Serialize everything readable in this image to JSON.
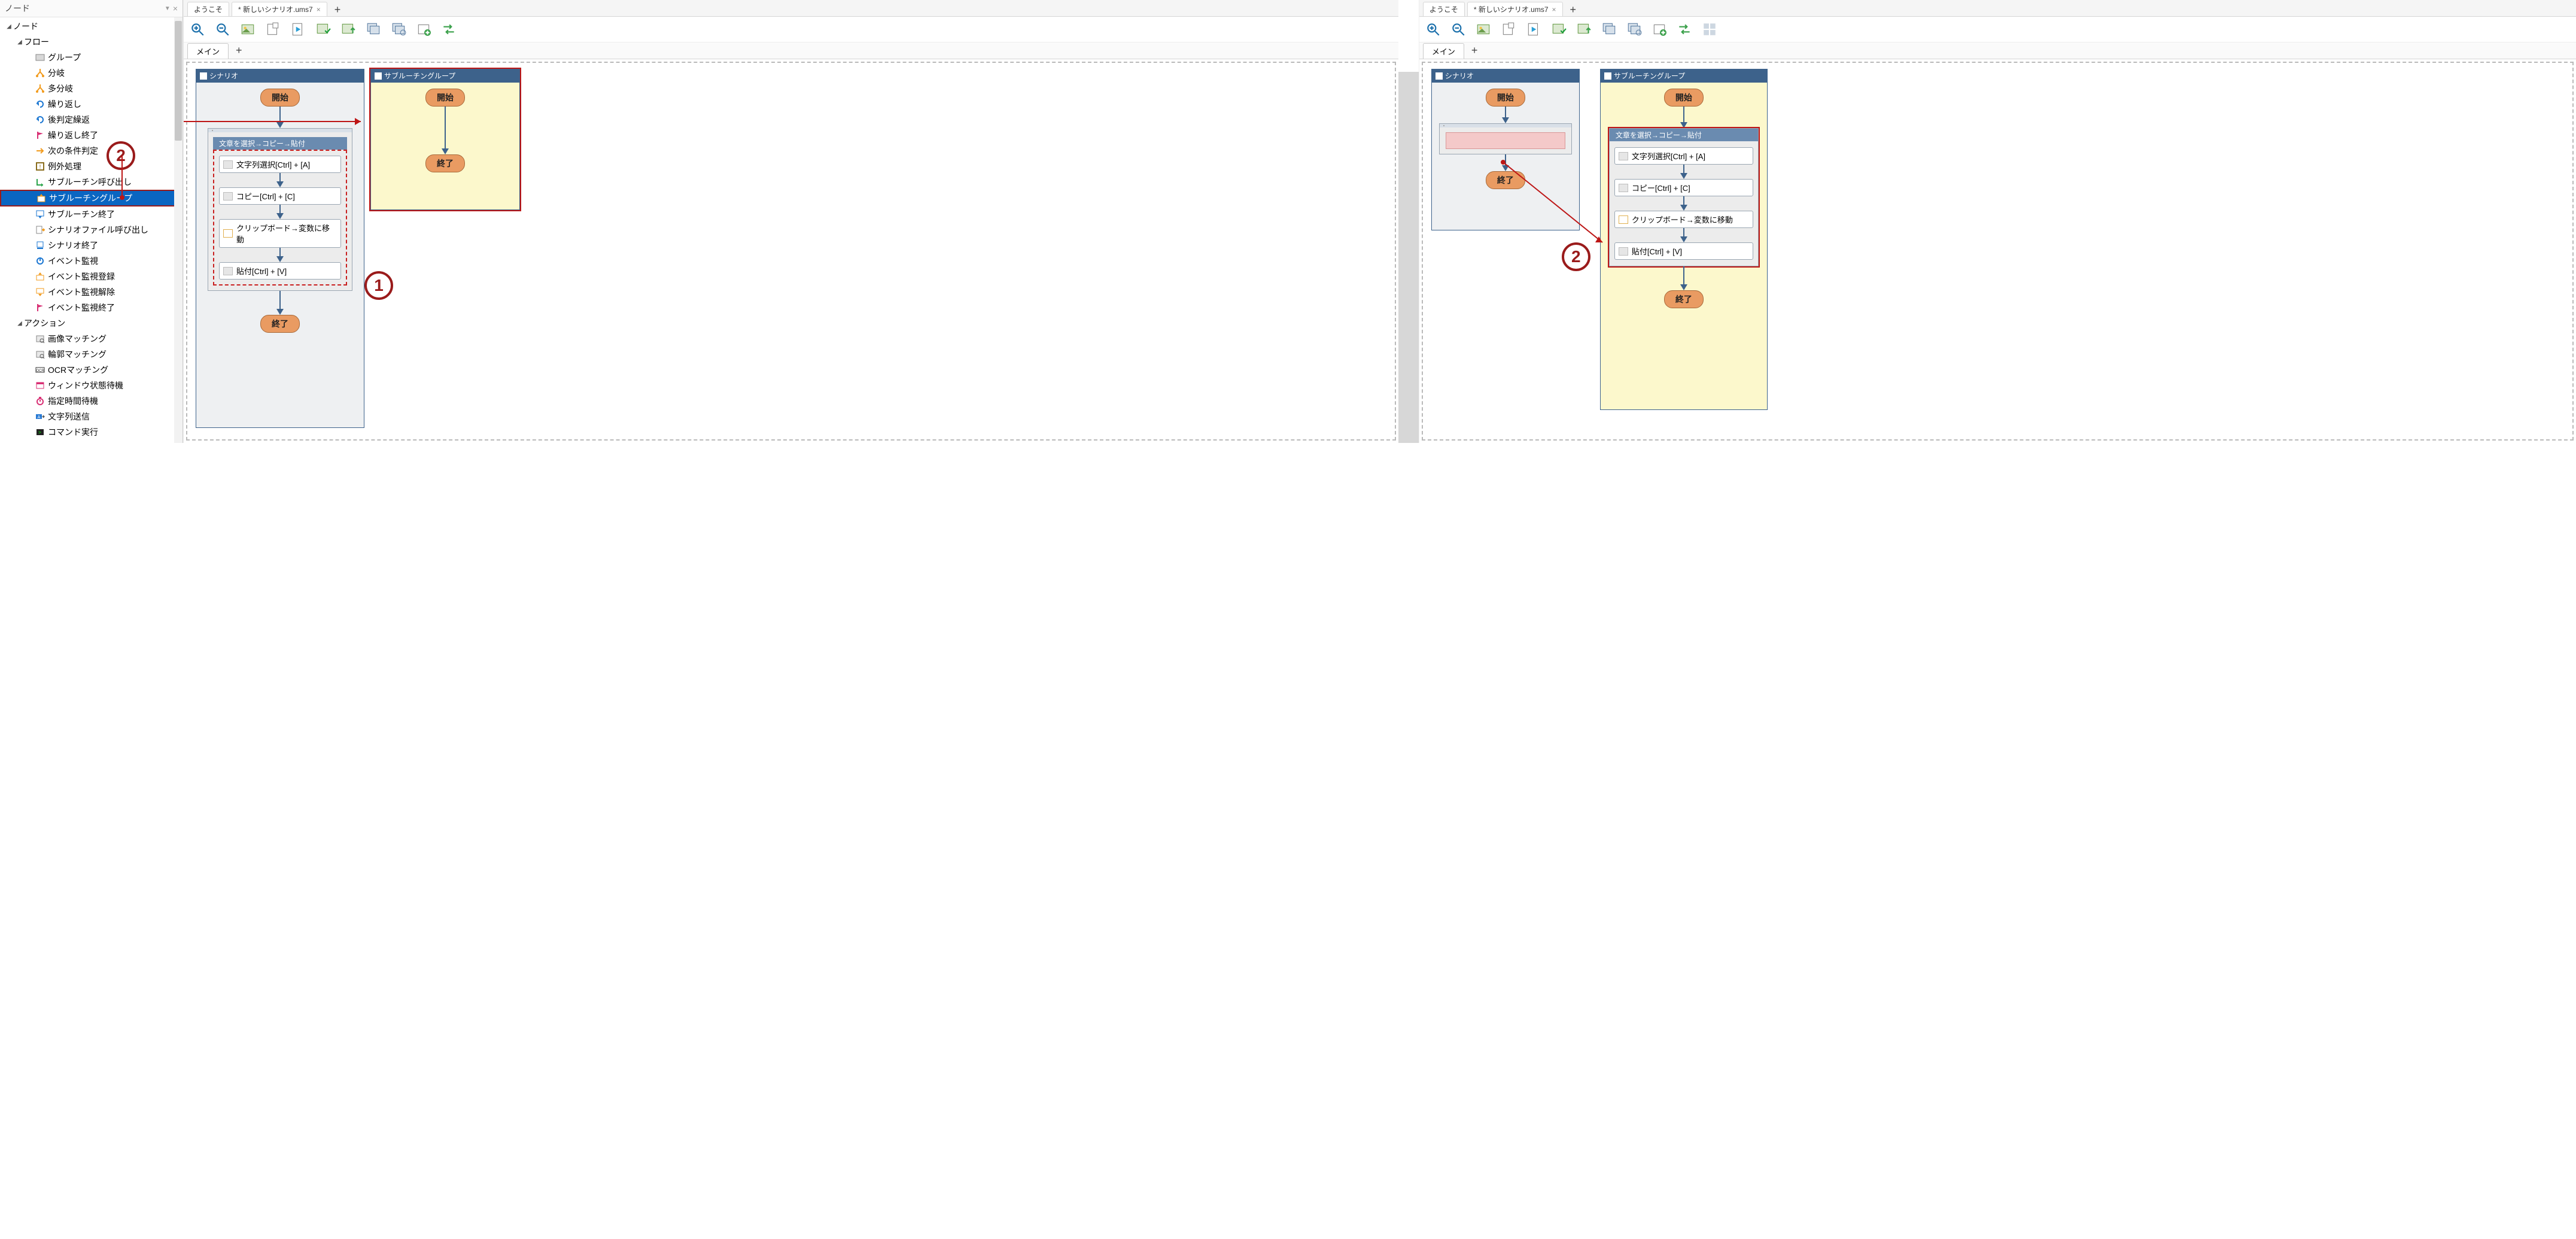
{
  "sidebar": {
    "title": "ノード",
    "root": "ノード",
    "groups": [
      {
        "label": "フロー",
        "items": [
          {
            "icon": "group",
            "color": "#9e9e9e",
            "label": "グループ"
          },
          {
            "icon": "branch",
            "color": "#f29b1d",
            "label": "分岐"
          },
          {
            "icon": "branch",
            "color": "#f29b1d",
            "label": "多分岐"
          },
          {
            "icon": "loop",
            "color": "#1a76d2",
            "label": "繰り返し"
          },
          {
            "icon": "loop",
            "color": "#1a76d2",
            "label": "後判定繰返"
          },
          {
            "icon": "flag",
            "color": "#d82f74",
            "label": "繰り返し終了"
          },
          {
            "icon": "next",
            "color": "#f29b1d",
            "label": "次の条件判定"
          },
          {
            "icon": "except",
            "color": "#8a6d1e",
            "label": "例外処理"
          },
          {
            "icon": "subcall",
            "color": "#2aa34a",
            "label": "サブルーチン呼び出し"
          },
          {
            "icon": "subgroup",
            "color": "#f29b1d",
            "label": "サブルーチングループ",
            "selected": true
          },
          {
            "icon": "subend",
            "color": "#1a76d2",
            "label": "サブルーチン終了"
          },
          {
            "icon": "filecall",
            "color": "#f29b1d",
            "label": "シナリオファイル呼び出し"
          },
          {
            "icon": "scend",
            "color": "#1a76d2",
            "label": "シナリオ終了"
          },
          {
            "icon": "watch",
            "color": "#1a76d2",
            "label": "イベント監視"
          },
          {
            "icon": "watchreg",
            "color": "#f29b1d",
            "label": "イベント監視登録"
          },
          {
            "icon": "watchun",
            "color": "#f29b1d",
            "label": "イベント監視解除"
          },
          {
            "icon": "watchend",
            "color": "#d82f74",
            "label": "イベント監視終了"
          }
        ]
      },
      {
        "label": "アクション",
        "items": [
          {
            "icon": "match",
            "color": "#6b6b6b",
            "label": "画像マッチング"
          },
          {
            "icon": "match",
            "color": "#6b6b6b",
            "label": "輪郭マッチング"
          },
          {
            "icon": "ocr",
            "color": "#333333",
            "label": "OCRマッチング"
          },
          {
            "icon": "winwait",
            "color": "#d82f74",
            "label": "ウィンドウ状態待機"
          },
          {
            "icon": "timer",
            "color": "#d82f74",
            "label": "指定時間待機"
          },
          {
            "icon": "send",
            "color": "#2a7bd4",
            "label": "文字列送信"
          },
          {
            "icon": "cmd",
            "color": "#333333",
            "label": "コマンド実行"
          }
        ]
      }
    ]
  },
  "tabs": {
    "welcome": "ようこそ",
    "file": "* 新しいシナリオ.ums7",
    "main": "メイン"
  },
  "flow": {
    "scenario": "シナリオ",
    "subgroup": "サブルーチングループ",
    "start": "開始",
    "end": "終了",
    "group_title": "文章を選択→コピー→貼付",
    "steps": {
      "s1": "文字列選択[Ctrl] + [A]",
      "s2": "コピー[Ctrl] + [C]",
      "s3": "クリップボード→変数に移動",
      "s4": "貼付[Ctrl] + [V]"
    }
  },
  "badges": {
    "one": "1",
    "two": "2"
  },
  "colors": {
    "panel_header": "#3d628b",
    "terminal_fill": "#e99b62",
    "highlight_red": "#bd1616",
    "highlight_yellow": "#fcf8cc",
    "pink_slot": "#f4c9c9"
  }
}
